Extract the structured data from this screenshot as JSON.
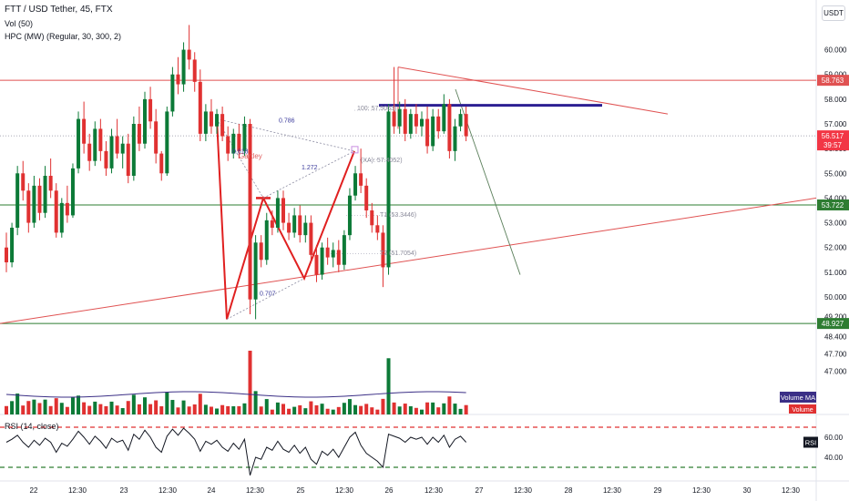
{
  "header": {
    "title": "FTT / USD Tether, 45, FTX",
    "vol": "Vol (50)",
    "hpc": "HPC (MW) (Regular, 30, 300, 2)",
    "currency": "USDT"
  },
  "rsi_title": "RSI (14, close)",
  "colors": {
    "up": "#0c7a37",
    "down": "#e03131",
    "red_line": "#e05252",
    "green_line": "#2e7d32",
    "navy": "#2c1f93",
    "pattern": "#e02020",
    "volume_ma": "#3b2f86"
  },
  "chart_data": {
    "type": "candlestick",
    "title": "FTT / USD Tether, 45, FTX",
    "ylim": [
      45.8,
      61.2
    ],
    "y_ticks": [
      "60.000",
      "59.000",
      "58.000",
      "57.000",
      "56.000",
      "55.000",
      "54.000",
      "53.000",
      "52.000",
      "51.000",
      "50.000",
      "49.200",
      "48.400",
      "47.700",
      "47.000"
    ],
    "x_ticks": [
      "22",
      "12:30",
      "23",
      "12:30",
      "24",
      "12:30",
      "25",
      "12:30",
      "26",
      "12:30",
      "27",
      "12:30",
      "28",
      "12:30",
      "29",
      "12:30",
      "30",
      "12:30"
    ],
    "price_labels": [
      {
        "value": 58.763,
        "text": "58.763",
        "color": "#e05252"
      },
      {
        "value": 56.517,
        "text": "56.517",
        "sub": "39:57",
        "color": "#f23645"
      },
      {
        "value": 53.722,
        "text": "53.722",
        "color": "#2e7d32"
      },
      {
        "value": 48.927,
        "text": "48.927",
        "color": "#2e7d32"
      }
    ],
    "horizontal_lines": [
      {
        "value": 58.763,
        "color": "#e05252"
      },
      {
        "value": 53.722,
        "color": "#2e7d32"
      },
      {
        "value": 48.927,
        "color": "#2e7d32"
      }
    ],
    "current_price": 56.517,
    "candles": [
      [
        52.0,
        52.6,
        51.0,
        51.4
      ],
      [
        51.4,
        53.0,
        51.2,
        52.8
      ],
      [
        52.8,
        55.3,
        52.5,
        55.0
      ],
      [
        55.0,
        55.5,
        53.9,
        54.3
      ],
      [
        54.3,
        54.6,
        52.6,
        53.0
      ],
      [
        53.0,
        54.9,
        52.8,
        54.5
      ],
      [
        54.5,
        54.8,
        53.1,
        53.4
      ],
      [
        53.4,
        55.3,
        53.2,
        54.9
      ],
      [
        54.9,
        55.6,
        54.0,
        54.3
      ],
      [
        54.3,
        54.6,
        52.4,
        52.6
      ],
      [
        52.6,
        54.0,
        52.4,
        53.8
      ],
      [
        53.8,
        54.5,
        53.0,
        53.3
      ],
      [
        53.3,
        55.4,
        53.2,
        55.2
      ],
      [
        55.2,
        57.5,
        55.0,
        57.2
      ],
      [
        57.2,
        57.9,
        55.8,
        56.2
      ],
      [
        56.2,
        56.6,
        55.1,
        55.5
      ],
      [
        55.5,
        57.1,
        55.3,
        56.8
      ],
      [
        56.8,
        57.2,
        55.5,
        55.9
      ],
      [
        55.9,
        56.3,
        54.9,
        55.2
      ],
      [
        55.2,
        56.8,
        55.0,
        56.5
      ],
      [
        56.5,
        57.2,
        55.6,
        55.8
      ],
      [
        55.8,
        56.5,
        55.2,
        56.2
      ],
      [
        56.2,
        56.6,
        54.6,
        54.9
      ],
      [
        54.9,
        57.3,
        54.7,
        57.0
      ],
      [
        57.0,
        57.7,
        55.9,
        56.2
      ],
      [
        56.2,
        58.3,
        56.0,
        58.0
      ],
      [
        58.0,
        58.5,
        56.8,
        57.1
      ],
      [
        57.1,
        57.6,
        55.4,
        55.8
      ],
      [
        55.8,
        55.9,
        54.7,
        55.0
      ],
      [
        55.0,
        57.7,
        54.9,
        57.5
      ],
      [
        57.5,
        59.3,
        57.3,
        59.0
      ],
      [
        59.0,
        59.7,
        58.2,
        58.6
      ],
      [
        58.6,
        60.3,
        58.3,
        60.0
      ],
      [
        60.0,
        61.0,
        59.2,
        59.6
      ],
      [
        59.6,
        59.9,
        58.3,
        58.7
      ],
      [
        58.7,
        59.2,
        56.3,
        56.6
      ],
      [
        56.6,
        57.8,
        56.3,
        57.5
      ],
      [
        57.5,
        58.0,
        56.6,
        56.9
      ],
      [
        56.9,
        57.6,
        56.6,
        57.4
      ],
      [
        57.4,
        57.7,
        56.3,
        56.5
      ],
      [
        56.5,
        56.9,
        55.5,
        55.8
      ],
      [
        55.8,
        56.8,
        55.6,
        56.6
      ],
      [
        56.6,
        57.0,
        55.6,
        55.9
      ],
      [
        55.9,
        57.3,
        55.7,
        57.0
      ],
      [
        57.0,
        57.2,
        49.3,
        49.9
      ],
      [
        49.9,
        52.5,
        49.1,
        52.2
      ],
      [
        52.2,
        52.5,
        51.2,
        51.5
      ],
      [
        51.5,
        53.4,
        51.3,
        53.1
      ],
      [
        53.1,
        53.5,
        52.5,
        52.8
      ],
      [
        52.8,
        54.3,
        52.6,
        54.0
      ],
      [
        54.0,
        54.3,
        52.7,
        53.0
      ],
      [
        53.0,
        53.4,
        52.3,
        52.6
      ],
      [
        52.6,
        53.6,
        52.4,
        53.3
      ],
      [
        53.3,
        53.7,
        52.2,
        52.5
      ],
      [
        52.5,
        53.3,
        52.2,
        53.0
      ],
      [
        53.0,
        53.3,
        51.4,
        51.7
      ],
      [
        51.7,
        52.1,
        50.6,
        50.9
      ],
      [
        50.9,
        52.2,
        50.7,
        52.0
      ],
      [
        52.0,
        52.4,
        51.3,
        51.6
      ],
      [
        51.6,
        52.2,
        51.2,
        51.9
      ],
      [
        51.9,
        52.3,
        51.0,
        51.3
      ],
      [
        51.3,
        52.7,
        51.1,
        52.5
      ],
      [
        52.5,
        54.4,
        52.3,
        54.1
      ],
      [
        54.1,
        55.3,
        53.9,
        55.0
      ],
      [
        55.0,
        56.0,
        54.2,
        54.5
      ],
      [
        54.5,
        54.8,
        53.2,
        53.5
      ],
      [
        53.5,
        53.8,
        52.6,
        52.9
      ],
      [
        52.9,
        53.3,
        52.3,
        52.6
      ],
      [
        52.6,
        52.9,
        50.4,
        51.2
      ],
      [
        51.2,
        57.8,
        50.9,
        57.5
      ],
      [
        57.5,
        59.3,
        56.6,
        56.9
      ],
      [
        56.9,
        57.9,
        56.6,
        57.6
      ],
      [
        57.6,
        58.0,
        56.3,
        56.6
      ],
      [
        56.6,
        57.6,
        56.4,
        57.4
      ],
      [
        57.4,
        57.8,
        56.6,
        56.9
      ],
      [
        56.9,
        57.5,
        56.5,
        57.2
      ],
      [
        57.2,
        57.7,
        55.8,
        56.1
      ],
      [
        56.1,
        57.6,
        55.9,
        57.3
      ],
      [
        57.3,
        57.6,
        56.4,
        56.7
      ],
      [
        56.7,
        58.2,
        56.6,
        57.8
      ],
      [
        57.8,
        58.0,
        55.6,
        55.9
      ],
      [
        55.9,
        57.2,
        55.5,
        56.9
      ],
      [
        56.9,
        57.6,
        56.7,
        57.4
      ],
      [
        57.4,
        57.7,
        56.3,
        56.5
      ]
    ],
    "volume": {
      "ma_label": "Volume MA",
      "label": "Volume"
    },
    "rsi": {
      "title": "RSI (14, close)",
      "label": "RSI",
      "upper": 70,
      "lower": 30,
      "y_ticks": [
        "60.00",
        "40.00"
      ],
      "values": [
        55,
        58,
        62,
        55,
        50,
        57,
        52,
        59,
        55,
        45,
        54,
        51,
        58,
        66,
        60,
        53,
        61,
        56,
        49,
        59,
        55,
        57,
        47,
        63,
        58,
        67,
        60,
        50,
        45,
        61,
        68,
        62,
        69,
        64,
        58,
        46,
        56,
        53,
        57,
        50,
        46,
        54,
        48,
        58,
        22,
        40,
        38,
        50,
        47,
        56,
        48,
        45,
        52,
        44,
        50,
        38,
        33,
        46,
        42,
        48,
        40,
        50,
        60,
        65,
        52,
        44,
        40,
        36,
        30,
        63,
        61,
        59,
        55,
        60,
        58,
        60,
        53,
        60,
        55,
        62,
        50,
        58,
        61,
        55
      ]
    },
    "annotations": [
      {
        "text": "Gartley",
        "color": "#e06060"
      },
      {
        "text": "0.786",
        "color": "#3c3c9c"
      },
      {
        "text": "0.618",
        "color": "#3c3c9c"
      },
      {
        "text": "1.272",
        "color": "#3c3c9c"
      },
      {
        "text": "0.707",
        "color": "#3c3c9c"
      },
      {
        "text": "(XA): 57.4052)",
        "color": "#8a8a9a"
      },
      {
        "text": "T1 (53.3446)",
        "color": "#8a8a9a"
      },
      {
        "text": "T2 (51.7054)",
        "color": "#8a8a9a"
      },
      {
        "text": "100: 57.5063)",
        "color": "#8a8a9a"
      }
    ]
  }
}
